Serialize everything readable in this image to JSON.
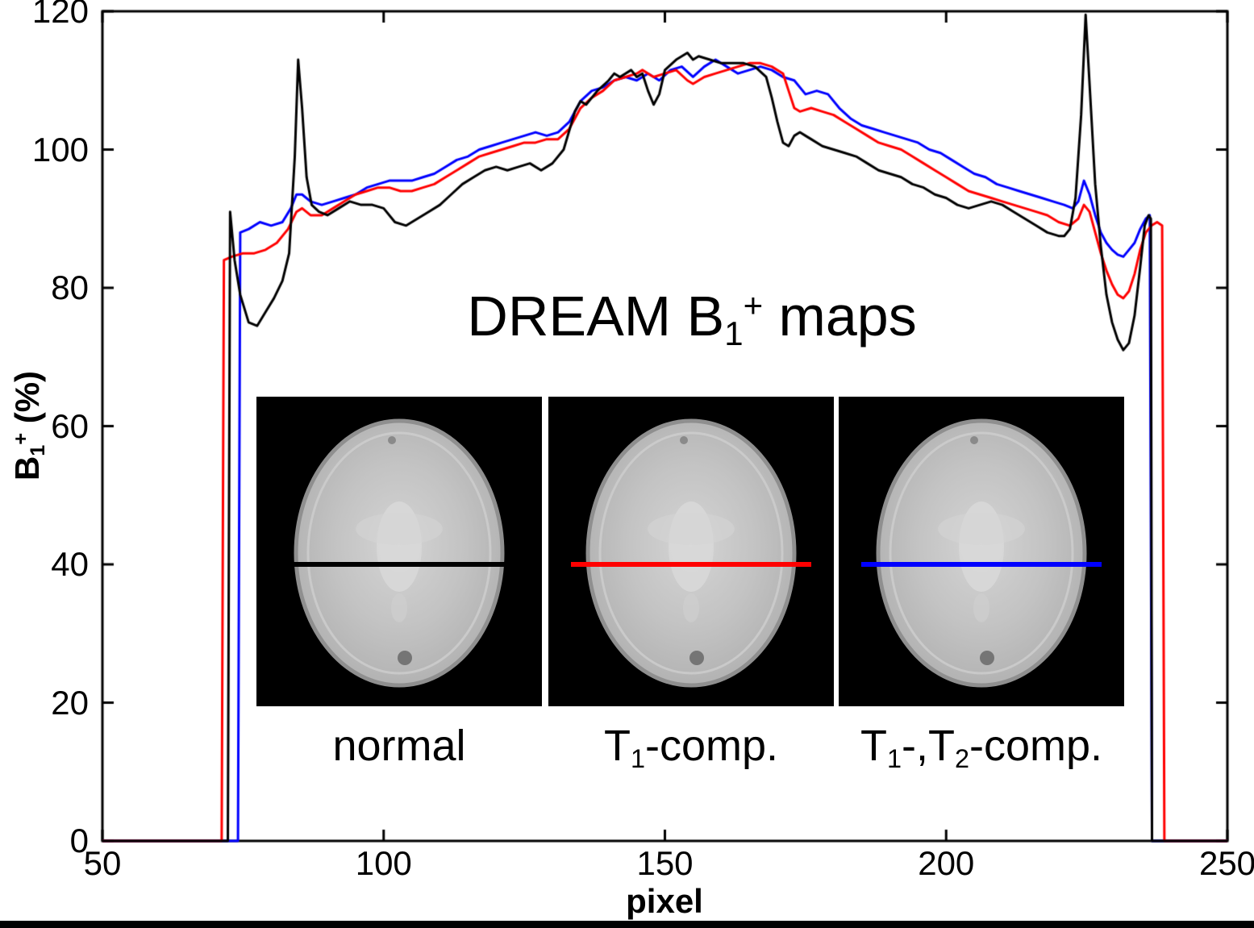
{
  "chart_data": {
    "type": "line",
    "title": "DREAM B1+ maps",
    "title_parts": {
      "pre": "DREAM B",
      "sub": "1",
      "sup": "+",
      "post": " maps"
    },
    "xlabel": "pixel",
    "ylabel": "B1+ (%)",
    "ylabel_parts": {
      "pre": "B",
      "sub": "1",
      "sup": "+",
      "post": " (%)"
    },
    "xlim": [
      50,
      250
    ],
    "ylim": [
      0,
      120
    ],
    "x_ticks": [
      50,
      100,
      150,
      200,
      250
    ],
    "y_ticks": [
      0,
      20,
      40,
      60,
      80,
      100,
      120
    ],
    "grid": false,
    "legend_position": "none",
    "axis_color": "#000000",
    "series": [
      {
        "name": "normal",
        "color": "#000000",
        "points": [
          [
            50,
            0
          ],
          [
            71.8,
            0
          ],
          [
            72.3,
            0
          ],
          [
            72.7,
            91
          ],
          [
            73.5,
            84
          ],
          [
            74.5,
            79
          ],
          [
            76,
            75
          ],
          [
            77.5,
            74.5
          ],
          [
            79,
            76.5
          ],
          [
            80.5,
            78.5
          ],
          [
            82,
            81
          ],
          [
            83.2,
            85
          ],
          [
            84.2,
            99
          ],
          [
            84.8,
            113
          ],
          [
            85.5,
            106
          ],
          [
            86.3,
            96
          ],
          [
            87.2,
            92
          ],
          [
            88.5,
            91
          ],
          [
            90,
            90.5
          ],
          [
            92,
            91.5
          ],
          [
            94,
            92.5
          ],
          [
            96,
            92
          ],
          [
            98,
            92
          ],
          [
            100,
            91.5
          ],
          [
            102,
            89.5
          ],
          [
            104,
            89
          ],
          [
            106,
            90
          ],
          [
            108,
            91
          ],
          [
            110,
            92
          ],
          [
            112,
            93.5
          ],
          [
            114,
            95
          ],
          [
            116,
            96
          ],
          [
            118,
            97
          ],
          [
            120,
            97.5
          ],
          [
            122,
            97
          ],
          [
            124,
            97.5
          ],
          [
            126,
            98
          ],
          [
            128,
            97
          ],
          [
            130,
            98
          ],
          [
            132,
            100
          ],
          [
            134,
            105.5
          ],
          [
            135,
            107
          ],
          [
            136,
            106.5
          ],
          [
            138,
            108.5
          ],
          [
            140,
            110
          ],
          [
            141,
            111
          ],
          [
            142,
            110.5
          ],
          [
            144,
            111.5
          ],
          [
            145,
            110.5
          ],
          [
            146,
            111
          ],
          [
            147,
            108.5
          ],
          [
            148,
            106.5
          ],
          [
            149,
            108
          ],
          [
            150,
            111.5
          ],
          [
            152,
            113
          ],
          [
            153,
            113.5
          ],
          [
            154,
            114
          ],
          [
            155,
            113
          ],
          [
            156,
            113.5
          ],
          [
            158,
            113
          ],
          [
            160,
            112.5
          ],
          [
            162,
            112.5
          ],
          [
            164,
            112.5
          ],
          [
            166,
            112
          ],
          [
            168,
            110.5
          ],
          [
            169,
            107.5
          ],
          [
            170,
            104
          ],
          [
            171,
            101
          ],
          [
            172,
            100.5
          ],
          [
            173,
            102
          ],
          [
            174,
            102.5
          ],
          [
            175,
            102
          ],
          [
            176,
            101.5
          ],
          [
            178,
            100.5
          ],
          [
            180,
            100
          ],
          [
            182,
            99.5
          ],
          [
            184,
            99
          ],
          [
            186,
            98
          ],
          [
            188,
            97
          ],
          [
            190,
            96.5
          ],
          [
            192,
            96
          ],
          [
            194,
            95
          ],
          [
            196,
            94.5
          ],
          [
            198,
            93.5
          ],
          [
            200,
            93
          ],
          [
            202,
            92
          ],
          [
            204,
            91.5
          ],
          [
            206,
            92
          ],
          [
            208,
            92.5
          ],
          [
            210,
            92
          ],
          [
            212,
            91
          ],
          [
            214,
            90
          ],
          [
            216,
            89
          ],
          [
            218,
            88
          ],
          [
            220,
            87.5
          ],
          [
            221,
            87.5
          ],
          [
            222,
            88.5
          ],
          [
            223,
            93
          ],
          [
            224,
            105
          ],
          [
            224.8,
            119.5
          ],
          [
            225.6,
            108
          ],
          [
            226.5,
            95
          ],
          [
            227.5,
            86
          ],
          [
            228.5,
            79
          ],
          [
            229.5,
            75
          ],
          [
            230.5,
            72.5
          ],
          [
            231.5,
            71
          ],
          [
            232.5,
            72
          ],
          [
            233.5,
            76
          ],
          [
            234.5,
            83
          ],
          [
            235.3,
            89
          ],
          [
            236,
            90.5
          ],
          [
            236.4,
            90
          ],
          [
            236.6,
            0
          ],
          [
            238,
            0
          ],
          [
            250,
            0
          ]
        ]
      },
      {
        "name": "T1-comp.",
        "color": "#ff0000",
        "points": [
          [
            50,
            0
          ],
          [
            70.8,
            0
          ],
          [
            71.2,
            0
          ],
          [
            71.6,
            84
          ],
          [
            73,
            84.5
          ],
          [
            75,
            85
          ],
          [
            77,
            85
          ],
          [
            79,
            85.5
          ],
          [
            81,
            86.5
          ],
          [
            83,
            88.5
          ],
          [
            84.5,
            91
          ],
          [
            85.5,
            91.5
          ],
          [
            87,
            90.5
          ],
          [
            89,
            90.5
          ],
          [
            91,
            91.5
          ],
          [
            93,
            92.5
          ],
          [
            95,
            93.5
          ],
          [
            97,
            94
          ],
          [
            99,
            94.5
          ],
          [
            101,
            94.5
          ],
          [
            103,
            94
          ],
          [
            105,
            94
          ],
          [
            107,
            94.5
          ],
          [
            109,
            95
          ],
          [
            111,
            96
          ],
          [
            113,
            97
          ],
          [
            115,
            98
          ],
          [
            117,
            99
          ],
          [
            119,
            99.5
          ],
          [
            121,
            100
          ],
          [
            123,
            100.5
          ],
          [
            125,
            101
          ],
          [
            127,
            101
          ],
          [
            129,
            101.5
          ],
          [
            131,
            101.5
          ],
          [
            133,
            103
          ],
          [
            135,
            106
          ],
          [
            137,
            107.5
          ],
          [
            139,
            108.5
          ],
          [
            141,
            110
          ],
          [
            143,
            110.5
          ],
          [
            145,
            111
          ],
          [
            146,
            111.5
          ],
          [
            148,
            110.5
          ],
          [
            150,
            111
          ],
          [
            152,
            111.5
          ],
          [
            154,
            110
          ],
          [
            155,
            109.5
          ],
          [
            157,
            110.5
          ],
          [
            159,
            111
          ],
          [
            161,
            111.5
          ],
          [
            163,
            112
          ],
          [
            165,
            112.5
          ],
          [
            167,
            112.5
          ],
          [
            169,
            112
          ],
          [
            171,
            111
          ],
          [
            172,
            108.5
          ],
          [
            173,
            106
          ],
          [
            174,
            105.5
          ],
          [
            176,
            106
          ],
          [
            178,
            105.5
          ],
          [
            180,
            105
          ],
          [
            182,
            104
          ],
          [
            184,
            103
          ],
          [
            186,
            102
          ],
          [
            188,
            101
          ],
          [
            190,
            100.5
          ],
          [
            192,
            100
          ],
          [
            194,
            99
          ],
          [
            196,
            98
          ],
          [
            198,
            97
          ],
          [
            200,
            96
          ],
          [
            202,
            95
          ],
          [
            204,
            94
          ],
          [
            206,
            93.5
          ],
          [
            208,
            93
          ],
          [
            210,
            92.5
          ],
          [
            212,
            92
          ],
          [
            214,
            91.5
          ],
          [
            216,
            91
          ],
          [
            218,
            90.5
          ],
          [
            220,
            89.5
          ],
          [
            222,
            89
          ],
          [
            223.5,
            90
          ],
          [
            224.5,
            92
          ],
          [
            225.5,
            91
          ],
          [
            226.5,
            88
          ],
          [
            227.5,
            85
          ],
          [
            228.5,
            82.5
          ],
          [
            229.5,
            80.5
          ],
          [
            230.5,
            79
          ],
          [
            231.5,
            78.5
          ],
          [
            232.5,
            79.5
          ],
          [
            233.5,
            82
          ],
          [
            234.5,
            85.5
          ],
          [
            235.5,
            88
          ],
          [
            236.5,
            89
          ],
          [
            237.5,
            89.5
          ],
          [
            238.4,
            89
          ],
          [
            238.8,
            0
          ],
          [
            240,
            0
          ],
          [
            250,
            0
          ]
        ]
      },
      {
        "name": "T1-,T2-comp.",
        "color": "#0000ff",
        "points": [
          [
            50,
            0
          ],
          [
            73.6,
            0
          ],
          [
            74.1,
            0
          ],
          [
            74.5,
            88
          ],
          [
            76,
            88.5
          ],
          [
            78,
            89.5
          ],
          [
            80,
            89
          ],
          [
            82,
            89.5
          ],
          [
            83.5,
            91.5
          ],
          [
            84.5,
            93.5
          ],
          [
            85.5,
            93.5
          ],
          [
            87,
            92.5
          ],
          [
            89,
            92
          ],
          [
            91,
            92.5
          ],
          [
            93,
            93
          ],
          [
            95,
            93.5
          ],
          [
            97,
            94.5
          ],
          [
            99,
            95
          ],
          [
            101,
            95.5
          ],
          [
            103,
            95.5
          ],
          [
            105,
            95.5
          ],
          [
            107,
            96
          ],
          [
            109,
            96.5
          ],
          [
            111,
            97.5
          ],
          [
            113,
            98.5
          ],
          [
            115,
            99
          ],
          [
            117,
            100
          ],
          [
            119,
            100.5
          ],
          [
            121,
            101
          ],
          [
            123,
            101.5
          ],
          [
            125,
            102
          ],
          [
            127,
            102.5
          ],
          [
            129,
            102
          ],
          [
            131,
            102.5
          ],
          [
            133,
            104
          ],
          [
            135,
            107
          ],
          [
            137,
            108.5
          ],
          [
            139,
            109
          ],
          [
            141,
            110
          ],
          [
            143,
            110.5
          ],
          [
            145,
            110
          ],
          [
            147,
            111
          ],
          [
            149,
            110
          ],
          [
            151,
            111.5
          ],
          [
            153,
            112
          ],
          [
            155,
            110.5
          ],
          [
            157,
            112
          ],
          [
            159,
            113
          ],
          [
            161,
            112
          ],
          [
            163,
            111
          ],
          [
            165,
            111.5
          ],
          [
            167,
            112
          ],
          [
            169,
            111.5
          ],
          [
            171,
            110.5
          ],
          [
            173,
            110
          ],
          [
            175,
            108
          ],
          [
            177,
            108.5
          ],
          [
            179,
            108
          ],
          [
            181,
            106
          ],
          [
            183,
            104.5
          ],
          [
            185,
            103.5
          ],
          [
            187,
            103
          ],
          [
            189,
            102.5
          ],
          [
            191,
            102
          ],
          [
            193,
            101.5
          ],
          [
            195,
            101
          ],
          [
            197,
            100
          ],
          [
            199,
            99.5
          ],
          [
            201,
            98.5
          ],
          [
            203,
            97.5
          ],
          [
            205,
            96.5
          ],
          [
            207,
            96
          ],
          [
            209,
            95
          ],
          [
            211,
            94.5
          ],
          [
            213,
            94
          ],
          [
            215,
            93.5
          ],
          [
            217,
            93
          ],
          [
            219,
            92.5
          ],
          [
            221,
            92
          ],
          [
            222.5,
            91.5
          ],
          [
            223.5,
            92.5
          ],
          [
            224.5,
            95.5
          ],
          [
            225.5,
            93.5
          ],
          [
            226.5,
            90.5
          ],
          [
            227.5,
            88
          ],
          [
            228.5,
            86.5
          ],
          [
            229.5,
            85.5
          ],
          [
            230.5,
            84.8
          ],
          [
            231.5,
            84.5
          ],
          [
            232.5,
            85.5
          ],
          [
            233.5,
            86.5
          ],
          [
            234.5,
            88.5
          ],
          [
            235.5,
            90
          ],
          [
            236.2,
            90.5
          ],
          [
            236.6,
            0
          ],
          [
            238,
            0
          ],
          [
            250,
            0
          ]
        ]
      }
    ],
    "insets": [
      {
        "label": "normal",
        "label_parts": {
          "pre": "normal"
        },
        "line_color": "#000000"
      },
      {
        "label": "T1-comp.",
        "label_parts": {
          "pre": "T",
          "sub": "1",
          "post": "-comp."
        },
        "line_color": "#ff0000"
      },
      {
        "label": "T1-,T2-comp.",
        "label_parts": {
          "pre": "T",
          "sub": "1",
          "mid": "-,T",
          "sub2": "2",
          "post": "-comp."
        },
        "line_color": "#0000ff"
      }
    ]
  }
}
